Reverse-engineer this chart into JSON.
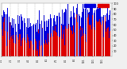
{
  "background_color": "#f0f0f0",
  "plot_bg_color": "#ffffff",
  "ylim": [
    0,
    100
  ],
  "xlim": [
    -1,
    366
  ],
  "y_ticks": [
    10,
    20,
    30,
    40,
    50,
    60,
    70,
    80,
    90,
    100
  ],
  "grid_color": "#aaaaaa",
  "bar_width": 0.8,
  "blue_color": "#0000dd",
  "red_color": "#dd0000",
  "seed": 42,
  "n_points": 365,
  "n_gridlines": 14
}
